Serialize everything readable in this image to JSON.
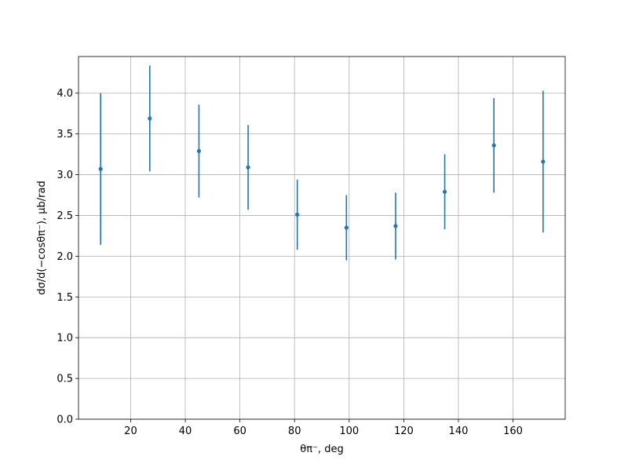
{
  "chart_data": {
    "type": "errorbar",
    "xlabel": "θπ⁻, deg",
    "ylabel": "dσ/d(−cosθπ⁻), μb/rad",
    "x": [
      9,
      27,
      45,
      63,
      81,
      99,
      117,
      135,
      153,
      171
    ],
    "values": [
      3.07,
      3.69,
      3.29,
      3.09,
      2.51,
      2.35,
      2.37,
      2.79,
      3.36,
      3.16
    ],
    "errors": [
      0.93,
      0.65,
      0.57,
      0.52,
      0.43,
      0.4,
      0.41,
      0.46,
      0.58,
      0.87
    ],
    "color": "#1f77b4",
    "xlim": [
      0.9,
      179.1
    ],
    "ylim": [
      0,
      4.45
    ],
    "xticks": [
      20,
      40,
      60,
      80,
      100,
      120,
      140,
      160
    ],
    "yticks": [
      {
        "value": 0,
        "label": "0.0"
      },
      {
        "value": 0.5,
        "label": "0.5"
      },
      {
        "value": 1,
        "label": "1.0"
      },
      {
        "value": 1.5,
        "label": "1.5"
      },
      {
        "value": 2,
        "label": "2.0"
      },
      {
        "value": 2.5,
        "label": "2.5"
      },
      {
        "value": 3,
        "label": "3.0"
      },
      {
        "value": 3.5,
        "label": "3.5"
      },
      {
        "value": 4,
        "label": "4.0"
      }
    ],
    "grid": true
  }
}
